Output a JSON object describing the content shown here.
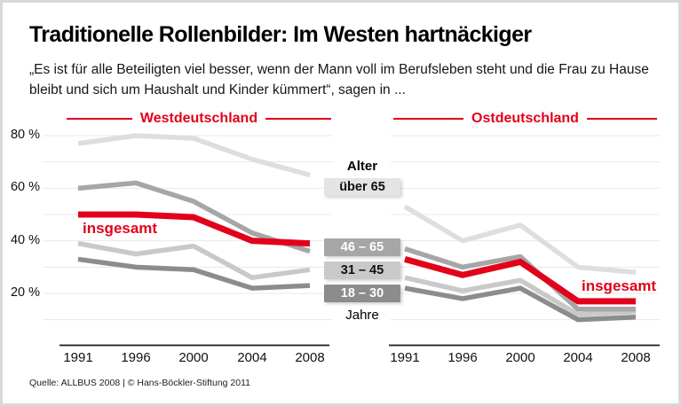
{
  "title": "Traditionelle Rollenbilder: Im Westen hartnäckiger",
  "subtitle": "„Es ist für alle Beteiligten viel besser, wenn der Mann voll im Berufsleben steht und die Frau zu Hause bleibt und sich um Haushalt und Kinder kümmert“, sagen in ...",
  "source": "Quelle: ALLBUS 2008 | © Hans-Böckler-Stiftung 2011",
  "colors": {
    "accent": "#e2001a",
    "grid": "#e8e8e8",
    "axis": "#1a1a1a",
    "page_border": "#d9d9d9"
  },
  "legend": {
    "heading": "Alter",
    "footer_label": "Jahre",
    "items": [
      {
        "label": "über 65",
        "bg": "#e4e4e4",
        "fg": "#111111"
      },
      {
        "label": "46 – 65",
        "bg": "#a6a6a6",
        "fg": "#ffffff"
      },
      {
        "label": "31 – 45",
        "bg": "#c9c9c9",
        "fg": "#111111"
      },
      {
        "label": "18 – 30",
        "bg": "#8c8c8c",
        "fg": "#ffffff"
      }
    ]
  },
  "chart_data": [
    {
      "type": "line",
      "title": "Westdeutschland",
      "x": [
        "1991",
        "1996",
        "2000",
        "2004",
        "2008"
      ],
      "unit": "%",
      "ylim": [
        0,
        85
      ],
      "grid": true,
      "y_tick_values": [
        80,
        60,
        40,
        20
      ],
      "y_tick_labels": [
        "80 %",
        "60 %",
        "40 %",
        "20 %"
      ],
      "series": [
        {
          "name": "über 65",
          "color": "#dedede",
          "values": [
            77,
            80,
            79,
            71,
            65
          ]
        },
        {
          "name": "31 – 45",
          "color": "#c9c9c9",
          "values": [
            39,
            35,
            38,
            26,
            29
          ]
        },
        {
          "name": "46 – 65",
          "color": "#a6a6a6",
          "values": [
            60,
            62,
            55,
            43,
            36
          ]
        },
        {
          "name": "18 – 30",
          "color": "#8c8c8c",
          "values": [
            33,
            30,
            29,
            22,
            23
          ]
        },
        {
          "name": "insgesamt",
          "color": "#e2001a",
          "values": [
            50,
            50,
            49,
            40,
            39
          ],
          "emphasis": true
        }
      ]
    },
    {
      "type": "line",
      "title": "Ostdeutschland",
      "x": [
        "1991",
        "1996",
        "2000",
        "2004",
        "2008"
      ],
      "unit": "%",
      "ylim": [
        0,
        85
      ],
      "grid": true,
      "y_tick_values": [],
      "y_tick_labels": [],
      "series": [
        {
          "name": "über 65",
          "color": "#dedede",
          "values": [
            53,
            40,
            46,
            30,
            28
          ]
        },
        {
          "name": "31 – 45",
          "color": "#c9c9c9",
          "values": [
            26,
            21,
            25,
            12,
            13
          ]
        },
        {
          "name": "46 – 65",
          "color": "#a6a6a6",
          "values": [
            37,
            30,
            34,
            14,
            14
          ]
        },
        {
          "name": "18 – 30",
          "color": "#8c8c8c",
          "values": [
            22,
            18,
            22,
            10,
            11
          ]
        },
        {
          "name": "insgesamt",
          "color": "#e2001a",
          "values": [
            33,
            27,
            32,
            17,
            17
          ],
          "emphasis": true
        }
      ]
    }
  ]
}
